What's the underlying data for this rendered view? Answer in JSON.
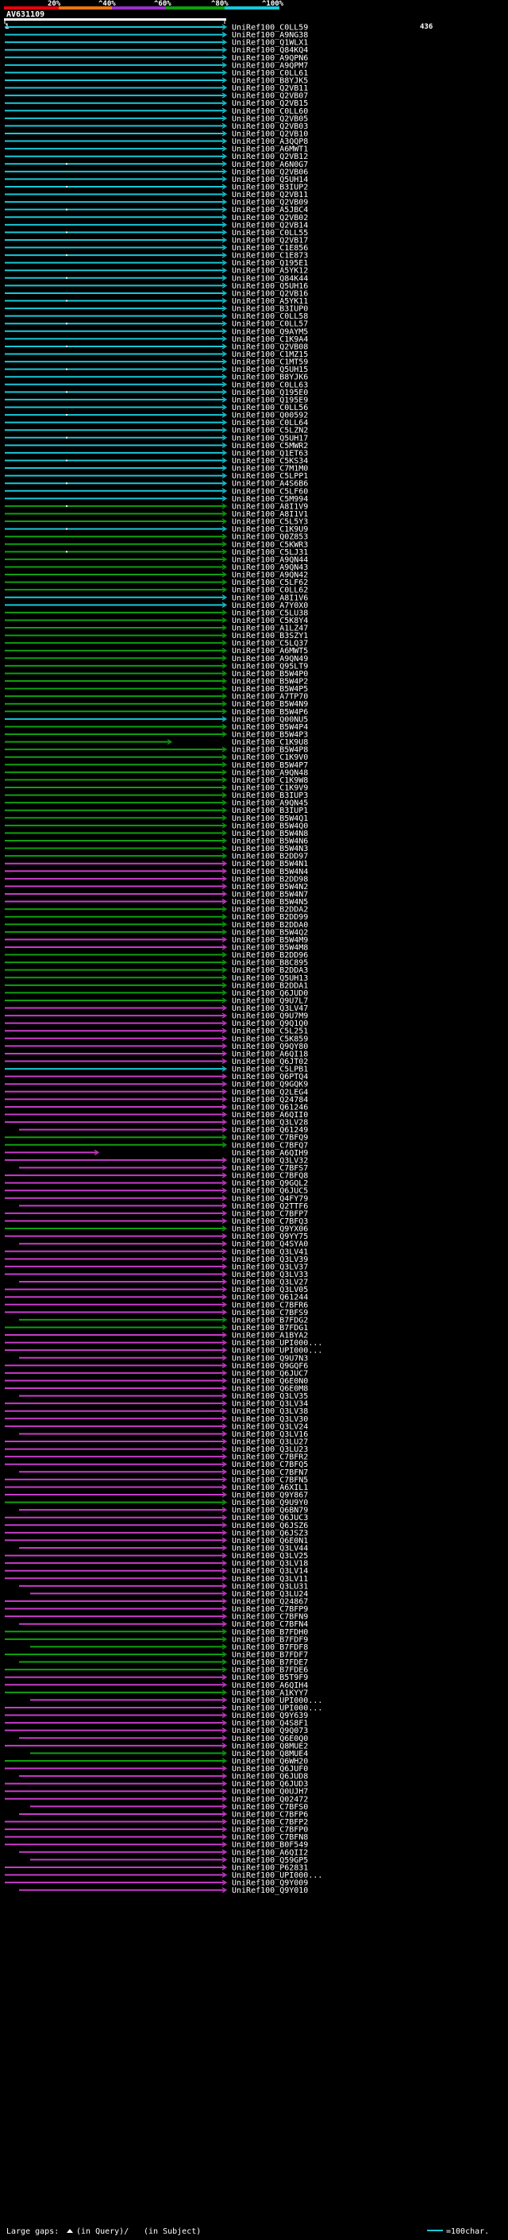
{
  "chart_data": {
    "type": "alignment-overview",
    "query_id": "AV631109",
    "query_start": "1",
    "query_end": "436",
    "identity_scale": {
      "ticks": [
        "20%",
        "^40%",
        "^60%",
        "^80%",
        "^100%"
      ],
      "colors": [
        "#e8000b",
        "#e8770b",
        "#9b30c8",
        "#0ea00e",
        "#18c8d8"
      ]
    },
    "footer": {
      "large_gaps_label": "Large gaps:",
      "in_query_label": "(in Query)/",
      "in_subject_label": "(in Subject)",
      "scale_label": "=100char."
    },
    "colors": {
      "cyan": "#18c8d8",
      "green": "#0ea00e",
      "magenta": "#c83cc8",
      "connector": "#666666",
      "gap_marker": "#cccccc"
    },
    "hits": [
      {
        "id": "UniRef100_C0LL59",
        "c": "cyan"
      },
      {
        "id": "UniRef100_A9NG38",
        "c": "cyan"
      },
      {
        "id": "UniRef100_Q1WLX1",
        "c": "cyan"
      },
      {
        "id": "UniRef100_Q84KQ4",
        "c": "cyan"
      },
      {
        "id": "UniRef100_A9QPN6",
        "c": "cyan"
      },
      {
        "id": "UniRef100_A9QPM7",
        "c": "cyan"
      },
      {
        "id": "UniRef100_C0LL61",
        "c": "cyan"
      },
      {
        "id": "UniRef100_B8YJK5",
        "c": "cyan"
      },
      {
        "id": "UniRef100_Q2VB11",
        "c": "cyan"
      },
      {
        "id": "UniRef100_Q2VB07",
        "c": "cyan"
      },
      {
        "id": "UniRef100_Q2VB15",
        "c": "cyan"
      },
      {
        "id": "UniRef100_C0LL60",
        "c": "cyan"
      },
      {
        "id": "UniRef100_Q2VB05",
        "c": "cyan"
      },
      {
        "id": "UniRef100_Q2VB03",
        "c": "cyan"
      },
      {
        "id": "UniRef100_Q2VB10",
        "c": "cyan"
      },
      {
        "id": "UniRef100_A3QQP8",
        "c": "cyan"
      },
      {
        "id": "UniRef100_A6MWT1",
        "c": "cyan"
      },
      {
        "id": "UniRef100_Q2VB12",
        "c": "cyan"
      },
      {
        "id": "UniRef100_A6N0G7",
        "c": "cyan"
      },
      {
        "id": "UniRef100_Q2VB06",
        "c": "cyan"
      },
      {
        "id": "UniRef100_Q5UH14",
        "c": "cyan"
      },
      {
        "id": "UniRef100_B3IUP2",
        "c": "cyan"
      },
      {
        "id": "UniRef100_Q2VB11",
        "c": "cyan"
      },
      {
        "id": "UniRef100_Q2VB09",
        "c": "cyan"
      },
      {
        "id": "UniRef100_A5JBC4",
        "c": "cyan"
      },
      {
        "id": "UniRef100_Q2VB02",
        "c": "cyan"
      },
      {
        "id": "UniRef100_Q2VB14",
        "c": "cyan"
      },
      {
        "id": "UniRef100_C0LL55",
        "c": "cyan"
      },
      {
        "id": "UniRef100_Q2VB17",
        "c": "cyan"
      },
      {
        "id": "UniRef100_C1E856",
        "c": "cyan"
      },
      {
        "id": "UniRef100_C1E873",
        "c": "cyan"
      },
      {
        "id": "UniRef100_Q195E1",
        "c": "cyan"
      },
      {
        "id": "UniRef100_A5YK12",
        "c": "cyan"
      },
      {
        "id": "UniRef100_Q84K44",
        "c": "cyan"
      },
      {
        "id": "UniRef100_Q5UH16",
        "c": "cyan"
      },
      {
        "id": "UniRef100_Q2VB16",
        "c": "cyan"
      },
      {
        "id": "UniRef100_A5YK11",
        "c": "cyan"
      },
      {
        "id": "UniRef100_B3IUP0",
        "c": "cyan"
      },
      {
        "id": "UniRef100_C0LL58",
        "c": "cyan"
      },
      {
        "id": "UniRef100_C0LL57",
        "c": "cyan"
      },
      {
        "id": "UniRef100_Q9AYM5",
        "c": "cyan"
      },
      {
        "id": "UniRef100_C1K9A4",
        "c": "cyan"
      },
      {
        "id": "UniRef100_Q2VB08",
        "c": "cyan"
      },
      {
        "id": "UniRef100_C1MZ15",
        "c": "cyan"
      },
      {
        "id": "UniRef100_C1MT59",
        "c": "cyan"
      },
      {
        "id": "UniRef100_Q5UH15",
        "c": "cyan"
      },
      {
        "id": "UniRef100_B8YJK6",
        "c": "cyan"
      },
      {
        "id": "UniRef100_C0LL63",
        "c": "cyan"
      },
      {
        "id": "UniRef100_Q195E0",
        "c": "cyan"
      },
      {
        "id": "UniRef100_Q195E9",
        "c": "cyan"
      },
      {
        "id": "UniRef100_C0LL56",
        "c": "cyan"
      },
      {
        "id": "UniRef100_Q00592",
        "c": "cyan"
      },
      {
        "id": "UniRef100_C0LL64",
        "c": "cyan"
      },
      {
        "id": "UniRef100_C5LZN2",
        "c": "cyan"
      },
      {
        "id": "UniRef100_Q5UH17",
        "c": "cyan"
      },
      {
        "id": "UniRef100_C5MWR2",
        "c": "cyan"
      },
      {
        "id": "UniRef100_Q1ET63",
        "c": "cyan"
      },
      {
        "id": "UniRef100_C5KS34",
        "c": "cyan"
      },
      {
        "id": "UniRef100_C7M1M0",
        "c": "cyan"
      },
      {
        "id": "UniRef100_C5LPP1",
        "c": "cyan"
      },
      {
        "id": "UniRef100_A4S6B6",
        "c": "cyan"
      },
      {
        "id": "UniRef100_C5LF60",
        "c": "cyan"
      },
      {
        "id": "UniRef100_C5M994",
        "c": "cyan"
      },
      {
        "id": "UniRef100_A8I1V9",
        "c": "green"
      },
      {
        "id": "UniRef100_A8I1V1",
        "c": "green"
      },
      {
        "id": "UniRef100_C5L5Y3",
        "c": "green"
      },
      {
        "id": "UniRef100_C1K9U9",
        "c": "cyan"
      },
      {
        "id": "UniRef100_Q0Z853",
        "c": "green"
      },
      {
        "id": "UniRef100_C5KWR3",
        "c": "green"
      },
      {
        "id": "UniRef100_C5LJ31",
        "c": "green"
      },
      {
        "id": "UniRef100_A9QN44",
        "c": "green"
      },
      {
        "id": "UniRef100_A9QN43",
        "c": "green"
      },
      {
        "id": "UniRef100_A9QN42",
        "c": "green"
      },
      {
        "id": "UniRef100_C5LF62",
        "c": "green"
      },
      {
        "id": "UniRef100_C0LL62",
        "c": "green"
      },
      {
        "id": "UniRef100_A8I1V6",
        "c": "cyan"
      },
      {
        "id": "UniRef100_A7Y0X0",
        "c": "cyan"
      },
      {
        "id": "UniRef100_C5LU38",
        "c": "green"
      },
      {
        "id": "UniRef100_C5K8Y4",
        "c": "green"
      },
      {
        "id": "UniRef100_A1LZ47",
        "c": "green"
      },
      {
        "id": "UniRef100_B3SZY1",
        "c": "green"
      },
      {
        "id": "UniRef100_C5LQ37",
        "c": "green"
      },
      {
        "id": "UniRef100_A6MWT5",
        "c": "green"
      },
      {
        "id": "UniRef100_A9QN49",
        "c": "green"
      },
      {
        "id": "UniRef100_Q95LT9",
        "c": "green"
      },
      {
        "id": "UniRef100_B5W4P0",
        "c": "green"
      },
      {
        "id": "UniRef100_B5W4P2",
        "c": "green"
      },
      {
        "id": "UniRef100_B5W4P5",
        "c": "green"
      },
      {
        "id": "UniRef100_A7TP70",
        "c": "green"
      },
      {
        "id": "UniRef100_B5W4N9",
        "c": "green"
      },
      {
        "id": "UniRef100_B5W4P6",
        "c": "green"
      },
      {
        "id": "UniRef100_Q00NU5",
        "c": "cyan"
      },
      {
        "id": "UniRef100_B5W4P4",
        "c": "green"
      },
      {
        "id": "UniRef100_B5W4P3",
        "c": "green"
      },
      {
        "id": "UniRef100_C1K9U8",
        "c": "green"
      },
      {
        "id": "UniRef100_B5W4P8",
        "c": "green"
      },
      {
        "id": "UniRef100_C1K9V0",
        "c": "green"
      },
      {
        "id": "UniRef100_B5W4P7",
        "c": "green"
      },
      {
        "id": "UniRef100_A9QN48",
        "c": "green"
      },
      {
        "id": "UniRef100_C1K9W8",
        "c": "green"
      },
      {
        "id": "UniRef100_C1K9V9",
        "c": "green"
      },
      {
        "id": "UniRef100_B3IUP3",
        "c": "green"
      },
      {
        "id": "UniRef100_A9QN45",
        "c": "green"
      },
      {
        "id": "UniRef100_B3IUP1",
        "c": "green"
      },
      {
        "id": "UniRef100_B5W4Q1",
        "c": "green"
      },
      {
        "id": "UniRef100_B5W4Q0",
        "c": "green"
      },
      {
        "id": "UniRef100_B5W4N8",
        "c": "green"
      },
      {
        "id": "UniRef100_B5W4N6",
        "c": "green"
      },
      {
        "id": "UniRef100_B5W4N3",
        "c": "green"
      },
      {
        "id": "UniRef100_B2DD97",
        "c": "green"
      },
      {
        "id": "UniRef100_B5W4N1",
        "c": "magenta"
      },
      {
        "id": "UniRef100_B5W4N4",
        "c": "magenta"
      },
      {
        "id": "UniRef100_B2DD98",
        "c": "magenta"
      },
      {
        "id": "UniRef100_B5W4N2",
        "c": "magenta"
      },
      {
        "id": "UniRef100_B5W4N7",
        "c": "magenta"
      },
      {
        "id": "UniRef100_B5W4N5",
        "c": "magenta"
      },
      {
        "id": "UniRef100_B2DDA2",
        "c": "green"
      },
      {
        "id": "UniRef100_B2DD99",
        "c": "green"
      },
      {
        "id": "UniRef100_B2DDA0",
        "c": "green"
      },
      {
        "id": "UniRef100_B5W4Q2",
        "c": "green"
      },
      {
        "id": "UniRef100_B5W4M9",
        "c": "magenta"
      },
      {
        "id": "UniRef100_B5W4M8",
        "c": "magenta"
      },
      {
        "id": "UniRef100_B2DD96",
        "c": "green"
      },
      {
        "id": "UniRef100_B8C895",
        "c": "green"
      },
      {
        "id": "UniRef100_B2DDA3",
        "c": "green"
      },
      {
        "id": "UniRef100_Q5UH13",
        "c": "green"
      },
      {
        "id": "UniRef100_B2DDA1",
        "c": "green"
      },
      {
        "id": "UniRef100_Q6JUD0",
        "c": "green"
      },
      {
        "id": "UniRef100_Q9U7L7",
        "c": "green"
      },
      {
        "id": "UniRef100_Q3LV47",
        "c": "magenta"
      },
      {
        "id": "UniRef100_Q9U7M9",
        "c": "magenta"
      },
      {
        "id": "UniRef100_Q9Q1Q0",
        "c": "magenta"
      },
      {
        "id": "UniRef100_C5L251",
        "c": "magenta"
      },
      {
        "id": "UniRef100_C5K859",
        "c": "magenta"
      },
      {
        "id": "UniRef100_Q9QY80",
        "c": "magenta"
      },
      {
        "id": "UniRef100_A6QI18",
        "c": "magenta"
      },
      {
        "id": "UniRef100_Q6JT02",
        "c": "magenta"
      },
      {
        "id": "UniRef100_C5LPB1",
        "c": "cyan"
      },
      {
        "id": "UniRef100_Q6PTQ4",
        "c": "magenta"
      },
      {
        "id": "UniRef100_Q9GQK9",
        "c": "magenta"
      },
      {
        "id": "UniRef100_Q2LEG4",
        "c": "magenta"
      },
      {
        "id": "UniRef100_Q24784",
        "c": "magenta"
      },
      {
        "id": "UniRef100_Q61246",
        "c": "magenta"
      },
      {
        "id": "UniRef100_A6QII0",
        "c": "magenta"
      },
      {
        "id": "UniRef100_Q3LV28",
        "c": "magenta"
      },
      {
        "id": "UniRef100_Q61249",
        "c": "magenta"
      },
      {
        "id": "UniRef100_C7BFQ9",
        "c": "green"
      },
      {
        "id": "UniRef100_C7BFQ7",
        "c": "green"
      },
      {
        "id": "UniRef100_A6QIH9",
        "c": "magenta"
      },
      {
        "id": "UniRef100_Q3LV32",
        "c": "magenta"
      },
      {
        "id": "UniRef100_C7BFS7",
        "c": "magenta"
      },
      {
        "id": "UniRef100_C7BFQ8",
        "c": "magenta"
      },
      {
        "id": "UniRef100_Q9GQL2",
        "c": "magenta"
      },
      {
        "id": "UniRef100_Q6JUC5",
        "c": "magenta"
      },
      {
        "id": "UniRef100_Q4FY79",
        "c": "magenta"
      },
      {
        "id": "UniRef100_Q2TTF6",
        "c": "magenta"
      },
      {
        "id": "UniRef100_C7BFP7",
        "c": "magenta"
      },
      {
        "id": "UniRef100_C7BFQ3",
        "c": "magenta"
      },
      {
        "id": "UniRef100_Q9YX06",
        "c": "green"
      },
      {
        "id": "UniRef100_Q9YY75",
        "c": "magenta"
      },
      {
        "id": "UniRef100_Q4SYA0",
        "c": "magenta"
      },
      {
        "id": "UniRef100_Q3LV41",
        "c": "magenta"
      },
      {
        "id": "UniRef100_Q3LV39",
        "c": "magenta"
      },
      {
        "id": "UniRef100_Q3LV37",
        "c": "magenta"
      },
      {
        "id": "UniRef100_Q3LV33",
        "c": "magenta"
      },
      {
        "id": "UniRef100_Q3LV27",
        "c": "magenta"
      },
      {
        "id": "UniRef100_Q3LV05",
        "c": "magenta"
      },
      {
        "id": "UniRef100_Q61244",
        "c": "magenta"
      },
      {
        "id": "UniRef100_C7BFR6",
        "c": "magenta"
      },
      {
        "id": "UniRef100_C7BFS9",
        "c": "magenta"
      },
      {
        "id": "UniRef100_B7FDG2",
        "c": "green"
      },
      {
        "id": "UniRef100_B7FDG1",
        "c": "green"
      },
      {
        "id": "UniRef100_A1BYA2",
        "c": "magenta"
      },
      {
        "id": "UniRef100_UPI000...",
        "c": "magenta"
      },
      {
        "id": "UniRef100_UPI000...",
        "c": "magenta"
      },
      {
        "id": "UniRef100_Q9U7N3",
        "c": "magenta"
      },
      {
        "id": "UniRef100_Q9GQF6",
        "c": "magenta"
      },
      {
        "id": "UniRef100_Q6JUC7",
        "c": "magenta"
      },
      {
        "id": "UniRef100_Q6E0N0",
        "c": "magenta"
      },
      {
        "id": "UniRef100_Q6E0M8",
        "c": "magenta"
      },
      {
        "id": "UniRef100_Q3LV35",
        "c": "magenta"
      },
      {
        "id": "UniRef100_Q3LV34",
        "c": "magenta"
      },
      {
        "id": "UniRef100_Q3LV38",
        "c": "magenta"
      },
      {
        "id": "UniRef100_Q3LV30",
        "c": "magenta"
      },
      {
        "id": "UniRef100_Q3LV24",
        "c": "magenta"
      },
      {
        "id": "UniRef100_Q3LV16",
        "c": "magenta"
      },
      {
        "id": "UniRef100_Q3LU27",
        "c": "magenta"
      },
      {
        "id": "UniRef100_Q3LU23",
        "c": "magenta"
      },
      {
        "id": "UniRef100_C7BFR2",
        "c": "magenta"
      },
      {
        "id": "UniRef100_C7BFQ5",
        "c": "magenta"
      },
      {
        "id": "UniRef100_C7BFN7",
        "c": "magenta"
      },
      {
        "id": "UniRef100_C7BFN5",
        "c": "magenta"
      },
      {
        "id": "UniRef100_A6XIL1",
        "c": "magenta"
      },
      {
        "id": "UniRef100_Q9Y867",
        "c": "magenta"
      },
      {
        "id": "UniRef100_Q9U9Y0",
        "c": "green"
      },
      {
        "id": "UniRef100_Q6BN79",
        "c": "magenta"
      },
      {
        "id": "UniRef100_Q6JUC3",
        "c": "magenta"
      },
      {
        "id": "UniRef100_Q6JSZ6",
        "c": "magenta"
      },
      {
        "id": "UniRef100_Q6JSZ3",
        "c": "magenta"
      },
      {
        "id": "UniRef100_Q6E0N1",
        "c": "magenta"
      },
      {
        "id": "UniRef100_Q3LV44",
        "c": "magenta"
      },
      {
        "id": "UniRef100_Q3LV25",
        "c": "magenta"
      },
      {
        "id": "UniRef100_Q3LV18",
        "c": "magenta"
      },
      {
        "id": "UniRef100_Q3LV14",
        "c": "magenta"
      },
      {
        "id": "UniRef100_Q3LV11",
        "c": "magenta"
      },
      {
        "id": "UniRef100_Q3LU31",
        "c": "magenta"
      },
      {
        "id": "UniRef100_Q3LU24",
        "c": "magenta"
      },
      {
        "id": "UniRef100_Q24867",
        "c": "magenta"
      },
      {
        "id": "UniRef100_C7BFP9",
        "c": "magenta"
      },
      {
        "id": "UniRef100_C7BFN9",
        "c": "magenta"
      },
      {
        "id": "UniRef100_C7BFN4",
        "c": "magenta"
      },
      {
        "id": "UniRef100_B7FDH0",
        "c": "green"
      },
      {
        "id": "UniRef100_B7FDF9",
        "c": "green"
      },
      {
        "id": "UniRef100_B7FDF8",
        "c": "green"
      },
      {
        "id": "UniRef100_B7FDF7",
        "c": "green"
      },
      {
        "id": "UniRef100_B7FDE7",
        "c": "green"
      },
      {
        "id": "UniRef100_B7FDE6",
        "c": "green"
      },
      {
        "id": "UniRef100_B5T9F9",
        "c": "magenta"
      },
      {
        "id": "UniRef100_A6QIH4",
        "c": "magenta"
      },
      {
        "id": "UniRef100_A1KYY7",
        "c": "green"
      },
      {
        "id": "UniRef100_UPI000...",
        "c": "magenta"
      },
      {
        "id": "UniRef100_UPI000...",
        "c": "magenta"
      },
      {
        "id": "UniRef100_Q9Y639",
        "c": "magenta"
      },
      {
        "id": "UniRef100_Q4S8F1",
        "c": "magenta"
      },
      {
        "id": "UniRef100_Q9Q073",
        "c": "magenta"
      },
      {
        "id": "UniRef100_Q6E0Q0",
        "c": "magenta"
      },
      {
        "id": "UniRef100_Q8MUE2",
        "c": "magenta"
      },
      {
        "id": "UniRef100_Q8MUE4",
        "c": "green"
      },
      {
        "id": "UniRef100_Q6WH20",
        "c": "green"
      },
      {
        "id": "UniRef100_Q6JUF0",
        "c": "magenta"
      },
      {
        "id": "UniRef100_Q6JUD8",
        "c": "magenta"
      },
      {
        "id": "UniRef100_Q6JUD3",
        "c": "magenta"
      },
      {
        "id": "UniRef100_Q0UJH7",
        "c": "magenta"
      },
      {
        "id": "UniRef100_Q02472",
        "c": "magenta"
      },
      {
        "id": "UniRef100_C7BFS0",
        "c": "magenta"
      },
      {
        "id": "UniRef100_C7BFP6",
        "c": "magenta"
      },
      {
        "id": "UniRef100_C7BFP2",
        "c": "magenta"
      },
      {
        "id": "UniRef100_C7BFP0",
        "c": "magenta"
      },
      {
        "id": "UniRef100_C7BFN8",
        "c": "magenta"
      },
      {
        "id": "UniRef100_B0F549",
        "c": "magenta"
      },
      {
        "id": "UniRef100_A6QII2",
        "c": "magenta"
      },
      {
        "id": "UniRef100_Q59GP5",
        "c": "magenta"
      },
      {
        "id": "UniRef100_P62831",
        "c": "magenta"
      },
      {
        "id": "UniRef100_UPI000...",
        "c": "magenta"
      },
      {
        "id": "UniRef100_Q9Y009",
        "c": "magenta"
      },
      {
        "id": "UniRef100_Q9Y010",
        "c": "magenta"
      }
    ]
  }
}
